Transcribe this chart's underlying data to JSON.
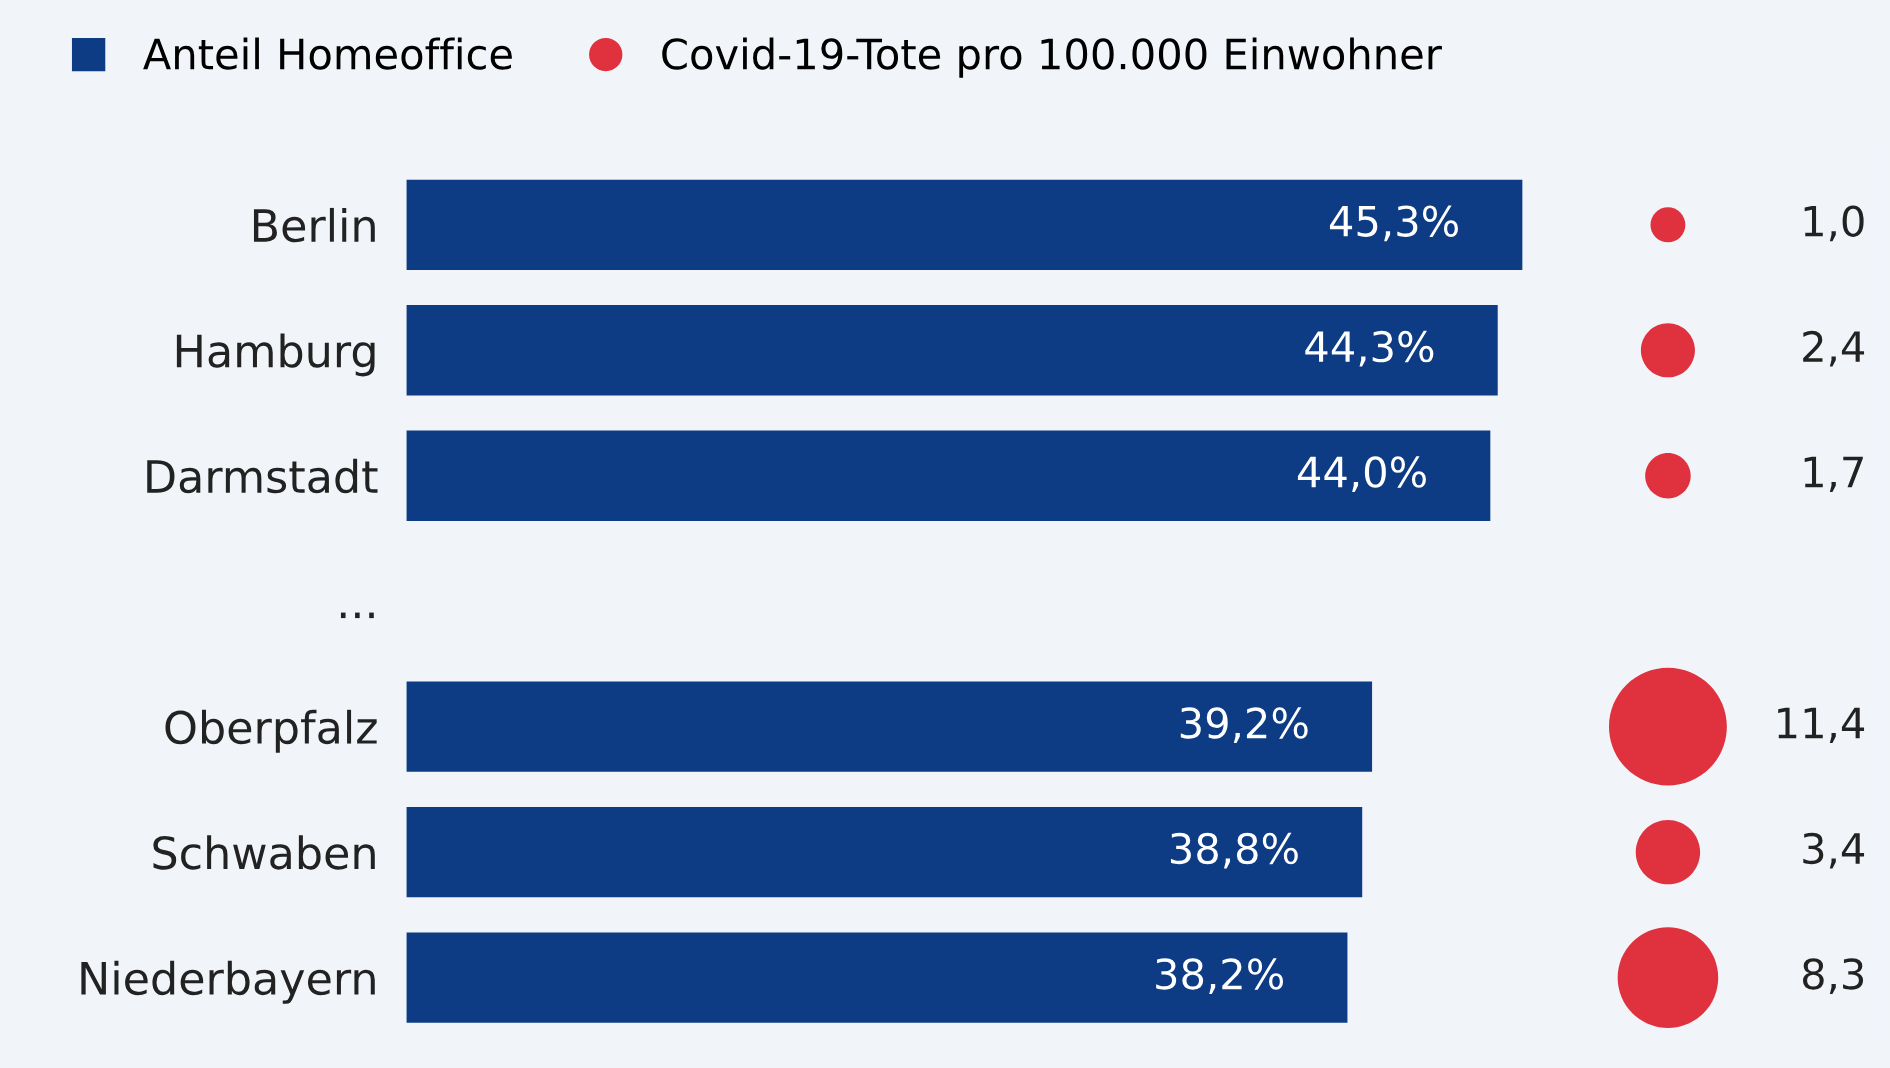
{
  "chart_data": [
    {
      "type": "bar",
      "orientation": "horizontal",
      "categories": [
        "Berlin",
        "Hamburg",
        "Darmstadt",
        "...",
        "Oberpfalz",
        "Schwaben",
        "Niederbayern"
      ],
      "series": [
        {
          "name": "Anteil Homeoffice",
          "color": "#0d3b84",
          "values": [
            45.3,
            44.3,
            44.0,
            null,
            39.2,
            38.8,
            38.2
          ],
          "value_labels": [
            "45,3%",
            "44,3%",
            "44,0%",
            null,
            "39,2%",
            "38,8%",
            "38,2%"
          ]
        }
      ],
      "legend": "top left"
    },
    {
      "type": "other",
      "categories": [
        null,
        null,
        null,
        null,
        null,
        null,
        null
      ],
      "series": [
        {
          "name": "Covid-19-Tote pro 100.000 Einwohner",
          "color": "#e0313f",
          "values": [
            1.0,
            2.4,
            1.7,
            null,
            11.4,
            3.4,
            8.3
          ],
          "value_labels": [
            "1,0",
            "2,4",
            "1,7",
            null,
            "11,4",
            "3,4",
            "8,3"
          ]
        }
      ],
      "legend": "top left"
    }
  ]
}
